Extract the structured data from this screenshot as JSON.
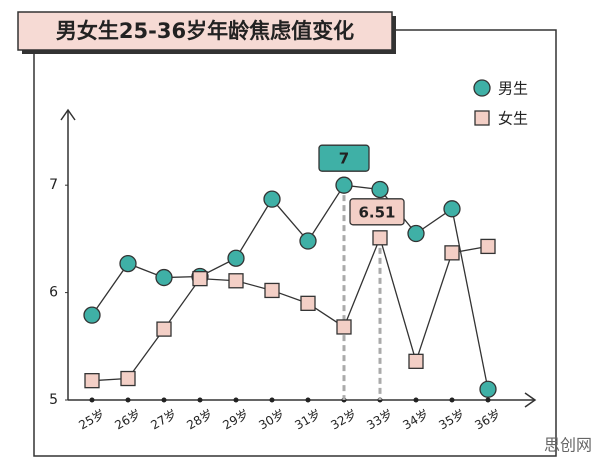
{
  "chart_data": {
    "type": "line",
    "title": "男女生25-36岁年龄焦虑值变化",
    "categories": [
      "25岁",
      "26岁",
      "27岁",
      "28岁",
      "29岁",
      "30岁",
      "31岁",
      "32岁",
      "33岁",
      "34岁",
      "35岁",
      "36岁"
    ],
    "series": [
      {
        "name": "男生",
        "color": "#3fb0a6",
        "marker": "circle",
        "values": [
          5.79,
          6.27,
          6.14,
          6.15,
          6.32,
          6.87,
          6.48,
          7,
          6.96,
          6.55,
          6.78,
          5.1
        ]
      },
      {
        "name": "女生",
        "color": "#f3cfc6",
        "marker": "square",
        "values": [
          5.18,
          5.2,
          5.66,
          6.13,
          6.11,
          6.02,
          5.9,
          5.68,
          6.51,
          5.36,
          6.37,
          6.43
        ]
      }
    ],
    "ylim": [
      5,
      7.7
    ],
    "yticks": [
      5,
      6,
      7
    ],
    "legend": "top-right",
    "callouts": [
      {
        "series": 0,
        "index": 7
      },
      {
        "series": 1,
        "index": 8
      }
    ]
  },
  "watermark": "思创网"
}
